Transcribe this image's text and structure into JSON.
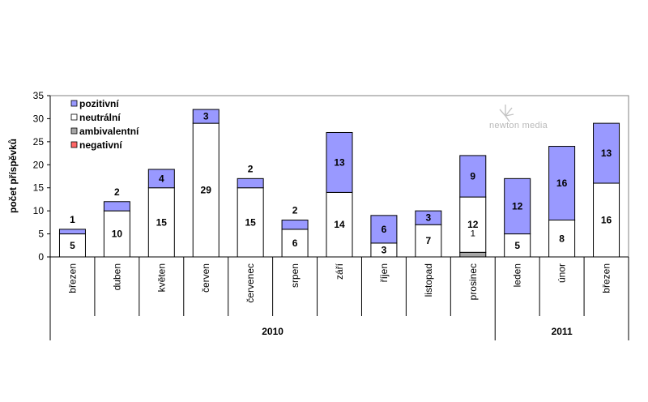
{
  "chart_data": {
    "type": "bar",
    "stacked": true,
    "ylabel": "počet příspěvků",
    "ylim": [
      0,
      35
    ],
    "yticks": [
      0,
      5,
      10,
      15,
      20,
      25,
      30,
      35
    ],
    "categories": [
      "březen",
      "duben",
      "květen",
      "červen",
      "červenec",
      "srpen",
      "září",
      "říjen",
      "listopad",
      "prosinec",
      "leden",
      "únor",
      "březen"
    ],
    "year_groups": [
      {
        "label": "2010",
        "count": 10
      },
      {
        "label": "2011",
        "count": 3
      }
    ],
    "series": [
      {
        "name": "negativní",
        "color": "#ff6666",
        "values": [
          0,
          0,
          0,
          0,
          0,
          0,
          0,
          0,
          0,
          0,
          0,
          0,
          0
        ]
      },
      {
        "name": "ambivalentní",
        "color": "#a6a6a6",
        "values": [
          0,
          0,
          0,
          0,
          0,
          0,
          0,
          0,
          0,
          1,
          0,
          0,
          0
        ]
      },
      {
        "name": "neutrální",
        "color": "#ffffff",
        "values": [
          5,
          10,
          15,
          29,
          15,
          6,
          14,
          3,
          7,
          12,
          5,
          8,
          16
        ]
      },
      {
        "name": "pozitivní",
        "color": "#9999ff",
        "values": [
          1,
          2,
          4,
          3,
          2,
          2,
          13,
          6,
          3,
          9,
          12,
          16,
          13
        ]
      }
    ],
    "legend_order": [
      "pozitivní",
      "neutrální",
      "ambivalentní",
      "negativní"
    ],
    "legend_position": "top-left",
    "grid": false
  },
  "logo_text": "newton media"
}
